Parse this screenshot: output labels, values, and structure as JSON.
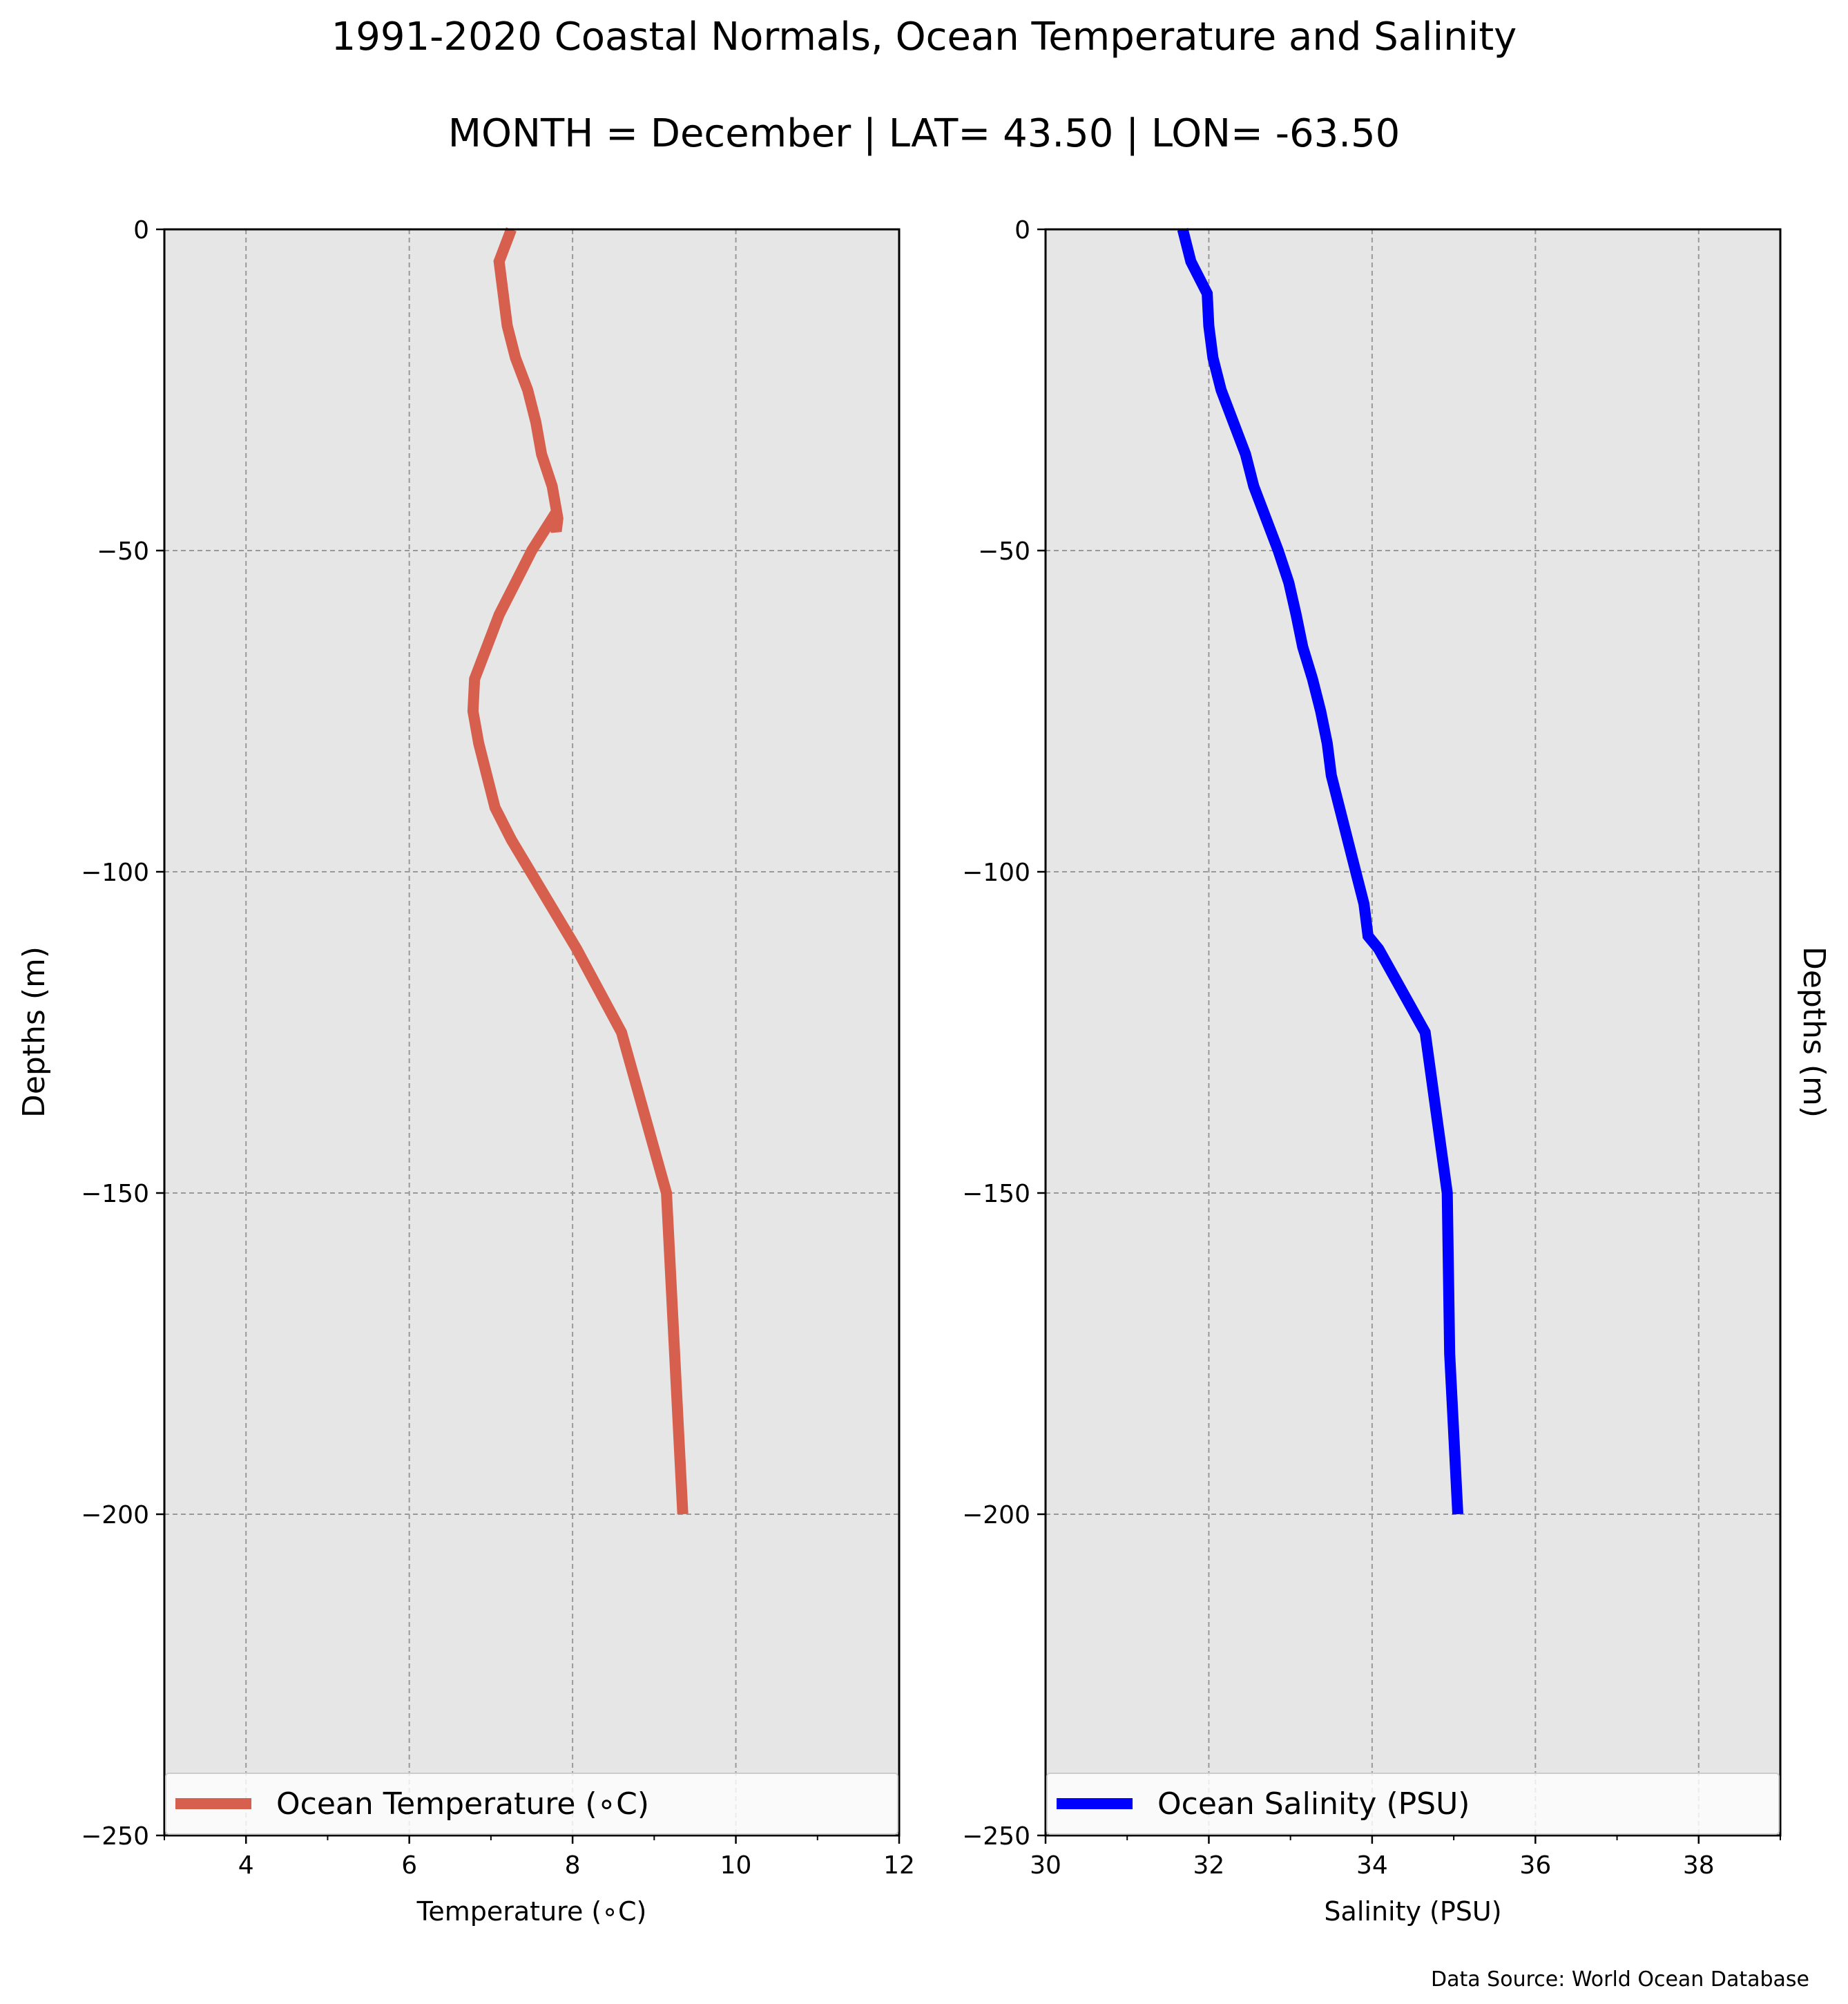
{
  "title": "1991-2020 Coastal Normals, Ocean Temperature and Salinity",
  "subtitle": "MONTH = December | LAT= 43.50 | LON= -63.50",
  "source_note": "Data Source: World Ocean Database",
  "colors": {
    "temperature_line": "#d6604d",
    "salinity_line": "#0000ff",
    "axes_background": "#e6e6e6",
    "grid": "#999999"
  },
  "chart_data": [
    {
      "type": "line",
      "xlabel": "Temperature ($^\\circ$C)",
      "xlabel_display": "Temperature (∘C)",
      "ylabel": "Depths (m)",
      "xlim": [
        3,
        12
      ],
      "ylim": [
        -250,
        0
      ],
      "xticks": [
        4,
        6,
        8,
        10,
        12
      ],
      "yticks": [
        0,
        -50,
        -100,
        -150,
        -200,
        -250
      ],
      "grid": true,
      "legend_position": "lower center",
      "series": [
        {
          "name": "Ocean Temperature (∘C)",
          "color": "#d6604d",
          "x": [
            7.25,
            7.1,
            7.15,
            7.2,
            7.3,
            7.45,
            7.55,
            7.62,
            7.75,
            7.82,
            7.8,
            7.75,
            7.5,
            7.3,
            7.1,
            6.95,
            6.8,
            6.78,
            6.85,
            6.95,
            7.05,
            7.25,
            8.05,
            8.6,
            9.15,
            9.25,
            9.35
          ],
          "y": [
            0,
            -5,
            -10,
            -15,
            -20,
            -25,
            -30,
            -35,
            -40,
            -45,
            -47,
            -45,
            -50,
            -55,
            -60,
            -65,
            -70,
            -75,
            -80,
            -85,
            -90,
            -95,
            -112,
            -125,
            -150,
            -175,
            -200
          ]
        }
      ]
    },
    {
      "type": "line",
      "xlabel": "Salinity (PSU)",
      "ylabel": "Depths (m)",
      "xlim": [
        30,
        39
      ],
      "ylim": [
        -250,
        0
      ],
      "xticks": [
        30,
        32,
        34,
        36,
        38
      ],
      "yticks": [
        0,
        -50,
        -100,
        -150,
        -200,
        -250
      ],
      "grid": true,
      "legend_position": "lower center",
      "series": [
        {
          "name": "Ocean Salinity (PSU)",
          "color": "#0000ff",
          "x": [
            31.68,
            31.78,
            31.98,
            32.0,
            32.05,
            32.15,
            32.3,
            32.45,
            32.55,
            32.7,
            32.85,
            32.98,
            33.07,
            33.15,
            33.27,
            33.37,
            33.45,
            33.5,
            33.6,
            33.7,
            33.8,
            33.9,
            33.95,
            34.08,
            34.65,
            34.92,
            34.95,
            35.05
          ],
          "y": [
            0,
            -5,
            -10,
            -15,
            -20,
            -25,
            -30,
            -35,
            -40,
            -45,
            -50,
            -55,
            -60,
            -65,
            -70,
            -75,
            -80,
            -85,
            -90,
            -95,
            -100,
            -105,
            -110,
            -112,
            -125,
            -150,
            -175,
            -200
          ]
        }
      ]
    }
  ]
}
